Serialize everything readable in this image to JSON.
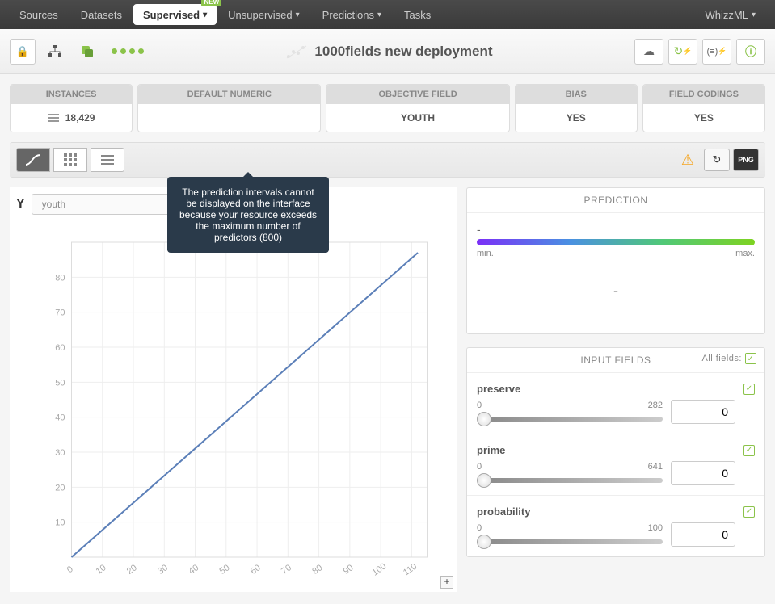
{
  "topnav": {
    "items": [
      "Sources",
      "Datasets",
      "Supervised",
      "Unsupervised",
      "Predictions",
      "Tasks"
    ],
    "active_index": 2,
    "new_badge": "NEW",
    "right": "WhizzML"
  },
  "header": {
    "title": "1000fields new deployment"
  },
  "info_cards": [
    {
      "label": "INSTANCES",
      "value": "18,429",
      "has_icon": true
    },
    {
      "label": "DEFAULT NUMERIC",
      "value": ""
    },
    {
      "label": "OBJECTIVE FIELD",
      "value": "YOUTH"
    },
    {
      "label": "BIAS",
      "value": "YES"
    },
    {
      "label": "FIELD CODINGS",
      "value": "YES"
    }
  ],
  "tooltip": "The prediction intervals cannot be displayed on the interface because your resource exceeds the maximum number of predictors (800)",
  "chart": {
    "y_label": "Y",
    "y_field": "youth",
    "y_ticks": [
      10,
      20,
      30,
      40,
      50,
      60,
      70,
      80
    ],
    "x_ticks": [
      0,
      10,
      20,
      30,
      40,
      50,
      60,
      70,
      80,
      90,
      100,
      110
    ],
    "line_color": "#5b7fb8",
    "grid_color": "#eeeeee",
    "text_color": "#aaaaaa",
    "line_start": [
      0,
      0
    ],
    "line_end": [
      112,
      87
    ]
  },
  "prediction": {
    "title": "PREDICTION",
    "value_top": "-",
    "min_label": "min.",
    "max_label": "max.",
    "gradient": [
      "#7b2ff7",
      "#4a90e2",
      "#50c878",
      "#7ed321"
    ],
    "value": "-"
  },
  "input_fields": {
    "title": "INPUT FIELDS",
    "all_fields_label": "All fields:",
    "fields": [
      {
        "name": "preserve",
        "min": 0,
        "max": 282,
        "value": "0"
      },
      {
        "name": "prime",
        "min": 0,
        "max": 641,
        "value": "0"
      },
      {
        "name": "probability",
        "min": 0,
        "max": 100,
        "value": "0"
      }
    ]
  },
  "png_label": "PNG"
}
